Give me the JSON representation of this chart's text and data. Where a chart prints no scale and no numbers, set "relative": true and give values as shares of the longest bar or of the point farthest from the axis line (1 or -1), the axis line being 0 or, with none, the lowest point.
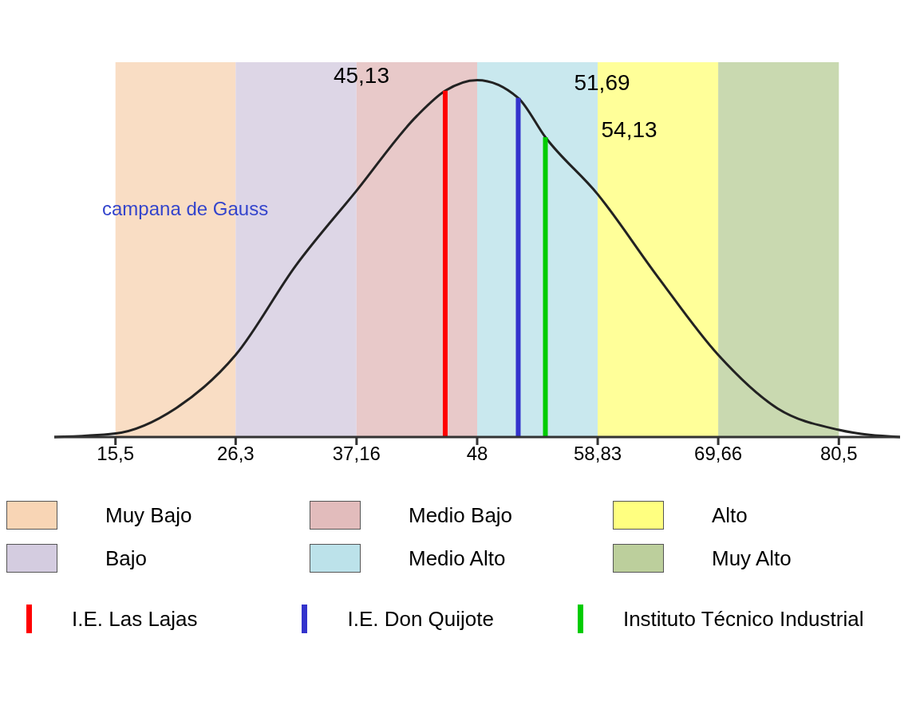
{
  "chart_data": {
    "type": "line",
    "relative": true,
    "legend": "bottom",
    "xlim": [
      10,
      86
    ],
    "xticks": [
      {
        "value": 15.5,
        "label": "15,5"
      },
      {
        "value": 26.3,
        "label": "26,3"
      },
      {
        "value": 37.16,
        "label": "37,16"
      },
      {
        "value": 48,
        "label": "48"
      },
      {
        "value": 58.83,
        "label": "58,83"
      },
      {
        "value": 69.66,
        "label": "69,66"
      },
      {
        "value": 80.5,
        "label": "80,5"
      }
    ],
    "series": [
      {
        "color": "#222222",
        "x": [
          10,
          15.5,
          20.9,
          26.3,
          31.7,
          37.16,
          42.6,
          45.13,
          48,
          51.69,
          54.13,
          58.83,
          64.2,
          69.66,
          75,
          80.5,
          86
        ],
        "values": [
          0,
          0.01,
          0.08,
          0.23,
          0.48,
          0.69,
          0.9,
          0.97,
          1,
          0.95,
          0.84,
          0.68,
          0.45,
          0.23,
          0.08,
          0.02,
          0
        ]
      },
      {
        "name": "I.E. Las Lajas",
        "color": "#ff0000",
        "x": [
          45.13,
          45.13
        ],
        "values": [
          0,
          0.97
        ]
      },
      {
        "name": "I.E. Don  Quijote",
        "color": "#3333cc",
        "x": [
          51.69,
          51.69
        ],
        "values": [
          0,
          0.95
        ]
      },
      {
        "name": "Instituto Técnico Industrial",
        "color": "#00cc00",
        "x": [
          54.13,
          54.13
        ],
        "values": [
          0,
          0.84
        ]
      }
    ],
    "bands": [
      {
        "axis": "x",
        "from": 15.5,
        "to": 26.3,
        "label": "Muy Bajo",
        "color": "#f8d5b5"
      },
      {
        "axis": "x",
        "from": 26.3,
        "to": 37.16,
        "label": "Bajo",
        "color": "#d4cce0"
      },
      {
        "axis": "x",
        "from": 37.16,
        "to": 48,
        "label": "Medio Bajo",
        "color": "#e2bcbc"
      },
      {
        "axis": "x",
        "from": 48,
        "to": 58.83,
        "label": "Medio Alto",
        "color": "#bce2ea"
      },
      {
        "axis": "x",
        "from": 58.83,
        "to": 69.66,
        "label": "Alto",
        "color": "#ffff80"
      },
      {
        "axis": "x",
        "from": 69.66,
        "to": 80.5,
        "label": "Muy Alto",
        "color": "#bccf9c"
      }
    ],
    "annotations": [
      "campana de Gauss",
      {
        "text": "45,13",
        "x": 45.13,
        "y": 0.97
      },
      {
        "text": "51,69",
        "x": 51.69,
        "y": 0.95
      },
      {
        "text": "54,13",
        "x": 54.13,
        "y": 0.84
      }
    ]
  }
}
